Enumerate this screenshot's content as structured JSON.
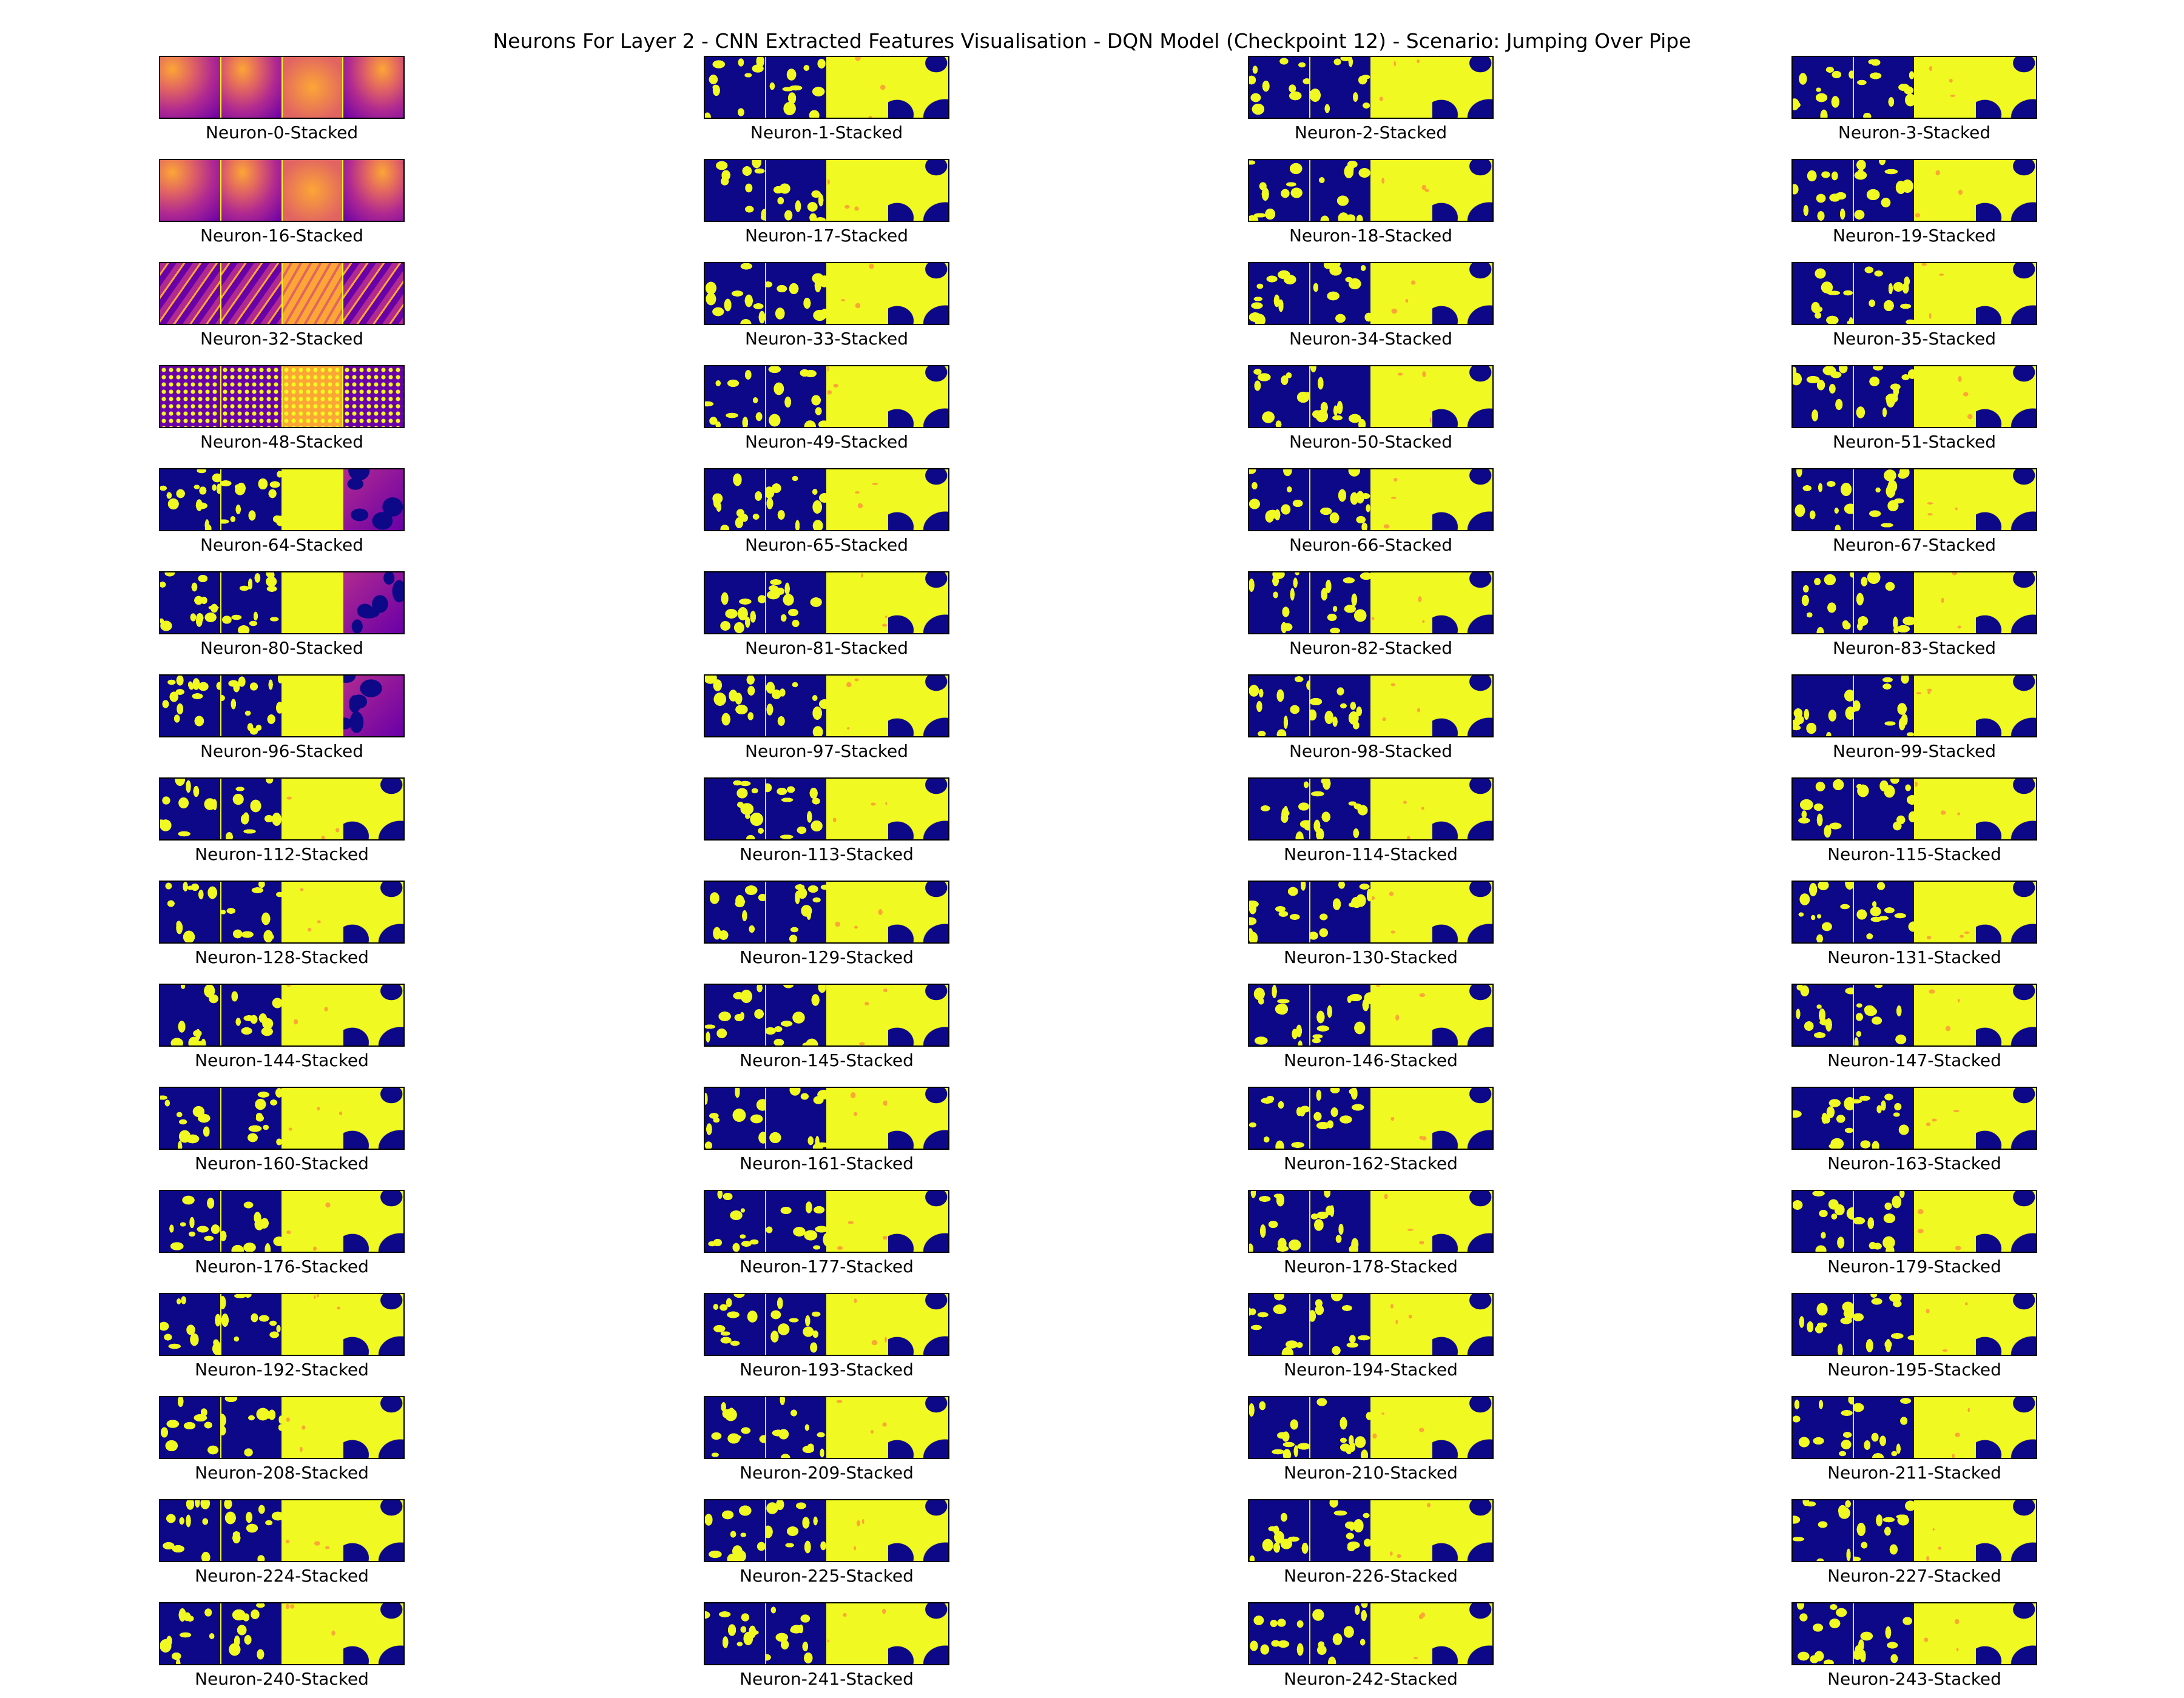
{
  "figure": {
    "title": "Neurons For Layer 2 - CNN Extracted Features Visualisation - DQN Model (Checkpoint 12) - Scenario: Jumping Over Pipe",
    "colormap": [
      "#0d0887",
      "#6a00a8",
      "#b12a90",
      "#e16462",
      "#fca636",
      "#f0f921"
    ]
  },
  "panels": [
    {
      "label": "Neuron-0-Stacked",
      "style": "plasma"
    },
    {
      "label": "Neuron-1-Stacked",
      "style": "binary"
    },
    {
      "label": "Neuron-2-Stacked",
      "style": "binary"
    },
    {
      "label": "Neuron-3-Stacked",
      "style": "binary"
    },
    {
      "label": "Neuron-16-Stacked",
      "style": "plasma"
    },
    {
      "label": "Neuron-17-Stacked",
      "style": "binary"
    },
    {
      "label": "Neuron-18-Stacked",
      "style": "binary"
    },
    {
      "label": "Neuron-19-Stacked",
      "style": "binary"
    },
    {
      "label": "Neuron-32-Stacked",
      "style": "plasma-streak"
    },
    {
      "label": "Neuron-33-Stacked",
      "style": "binary"
    },
    {
      "label": "Neuron-34-Stacked",
      "style": "binary"
    },
    {
      "label": "Neuron-35-Stacked",
      "style": "binary"
    },
    {
      "label": "Neuron-48-Stacked",
      "style": "dotted"
    },
    {
      "label": "Neuron-49-Stacked",
      "style": "binary"
    },
    {
      "label": "Neuron-50-Stacked",
      "style": "binary"
    },
    {
      "label": "Neuron-51-Stacked",
      "style": "binary"
    },
    {
      "label": "Neuron-64-Stacked",
      "style": "mixed"
    },
    {
      "label": "Neuron-65-Stacked",
      "style": "binary"
    },
    {
      "label": "Neuron-66-Stacked",
      "style": "binary"
    },
    {
      "label": "Neuron-67-Stacked",
      "style": "binary"
    },
    {
      "label": "Neuron-80-Stacked",
      "style": "mixed"
    },
    {
      "label": "Neuron-81-Stacked",
      "style": "binary"
    },
    {
      "label": "Neuron-82-Stacked",
      "style": "binary"
    },
    {
      "label": "Neuron-83-Stacked",
      "style": "binary"
    },
    {
      "label": "Neuron-96-Stacked",
      "style": "mixed"
    },
    {
      "label": "Neuron-97-Stacked",
      "style": "binary"
    },
    {
      "label": "Neuron-98-Stacked",
      "style": "binary"
    },
    {
      "label": "Neuron-99-Stacked",
      "style": "binary"
    },
    {
      "label": "Neuron-112-Stacked",
      "style": "binary"
    },
    {
      "label": "Neuron-113-Stacked",
      "style": "binary"
    },
    {
      "label": "Neuron-114-Stacked",
      "style": "binary"
    },
    {
      "label": "Neuron-115-Stacked",
      "style": "binary"
    },
    {
      "label": "Neuron-128-Stacked",
      "style": "binary"
    },
    {
      "label": "Neuron-129-Stacked",
      "style": "binary"
    },
    {
      "label": "Neuron-130-Stacked",
      "style": "binary"
    },
    {
      "label": "Neuron-131-Stacked",
      "style": "binary"
    },
    {
      "label": "Neuron-144-Stacked",
      "style": "binary"
    },
    {
      "label": "Neuron-145-Stacked",
      "style": "binary"
    },
    {
      "label": "Neuron-146-Stacked",
      "style": "binary"
    },
    {
      "label": "Neuron-147-Stacked",
      "style": "binary"
    },
    {
      "label": "Neuron-160-Stacked",
      "style": "binary"
    },
    {
      "label": "Neuron-161-Stacked",
      "style": "binary"
    },
    {
      "label": "Neuron-162-Stacked",
      "style": "binary"
    },
    {
      "label": "Neuron-163-Stacked",
      "style": "binary"
    },
    {
      "label": "Neuron-176-Stacked",
      "style": "binary"
    },
    {
      "label": "Neuron-177-Stacked",
      "style": "binary"
    },
    {
      "label": "Neuron-178-Stacked",
      "style": "binary"
    },
    {
      "label": "Neuron-179-Stacked",
      "style": "binary"
    },
    {
      "label": "Neuron-192-Stacked",
      "style": "binary"
    },
    {
      "label": "Neuron-193-Stacked",
      "style": "binary"
    },
    {
      "label": "Neuron-194-Stacked",
      "style": "binary"
    },
    {
      "label": "Neuron-195-Stacked",
      "style": "binary"
    },
    {
      "label": "Neuron-208-Stacked",
      "style": "binary"
    },
    {
      "label": "Neuron-209-Stacked",
      "style": "binary"
    },
    {
      "label": "Neuron-210-Stacked",
      "style": "binary"
    },
    {
      "label": "Neuron-211-Stacked",
      "style": "binary"
    },
    {
      "label": "Neuron-224-Stacked",
      "style": "binary"
    },
    {
      "label": "Neuron-225-Stacked",
      "style": "binary"
    },
    {
      "label": "Neuron-226-Stacked",
      "style": "binary"
    },
    {
      "label": "Neuron-227-Stacked",
      "style": "binary"
    },
    {
      "label": "Neuron-240-Stacked",
      "style": "binary"
    },
    {
      "label": "Neuron-241-Stacked",
      "style": "binary"
    },
    {
      "label": "Neuron-242-Stacked",
      "style": "binary"
    },
    {
      "label": "Neuron-243-Stacked",
      "style": "binary"
    }
  ]
}
